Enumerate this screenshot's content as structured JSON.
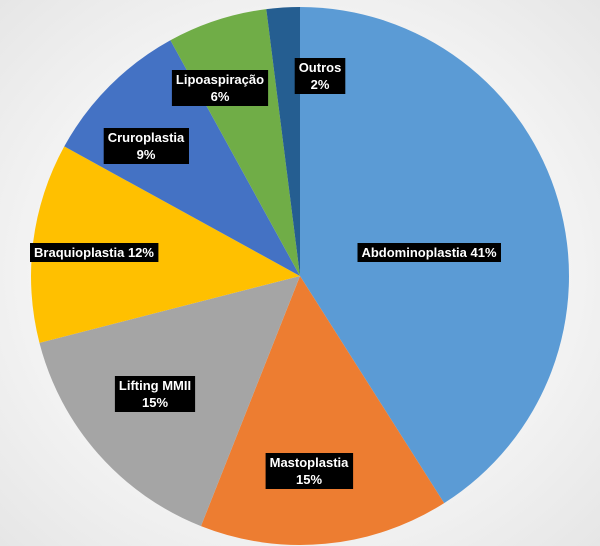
{
  "chart_data": {
    "type": "pie",
    "slices": [
      {
        "label": "Abdominoplastia",
        "value": 41,
        "percent_text": "41%",
        "color": "#5B9BD5"
      },
      {
        "label": "Mastoplastia",
        "value": 15,
        "percent_text": "15%",
        "color": "#ED7D31"
      },
      {
        "label": "Lifting MMII",
        "value": 15,
        "percent_text": "15%",
        "color": "#A5A5A5"
      },
      {
        "label": "Braquioplastia",
        "value": 12,
        "percent_text": "12%",
        "color": "#FFC000"
      },
      {
        "label": "Cruroplastia",
        "value": 9,
        "percent_text": "9%",
        "color": "#4472C4"
      },
      {
        "label": "Lipoaspiração",
        "value": 6,
        "percent_text": "6%",
        "color": "#70AD47"
      },
      {
        "label": "Outros",
        "value": 2,
        "percent_text": "2%",
        "color": "#255E91"
      }
    ]
  }
}
